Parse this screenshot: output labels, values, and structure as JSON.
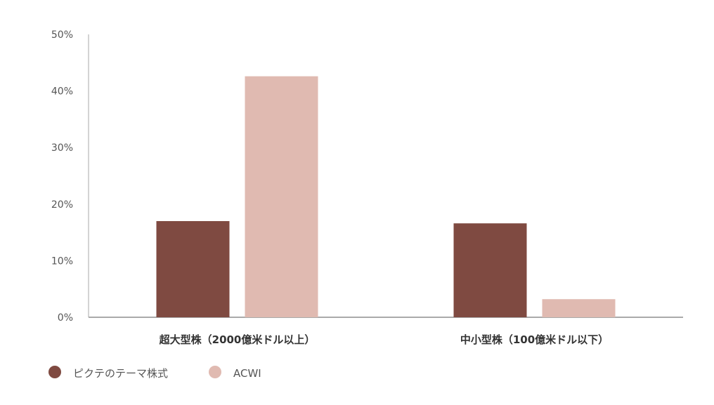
{
  "chart_data": {
    "type": "bar",
    "categories": [
      "超大型株（2000億米ドル以上）",
      "中小型株（100億米ドル以下）"
    ],
    "series": [
      {
        "name": "ピクテのテーマ株式",
        "values": [
          17.0,
          16.6
        ],
        "color": "#7F4A41"
      },
      {
        "name": "ACWI",
        "values": [
          42.6,
          3.2
        ],
        "color": "#E0BAB1"
      }
    ],
    "ylim": [
      0,
      50
    ],
    "yticks": [
      "0%",
      "10%",
      "20%",
      "30%",
      "40%",
      "50%"
    ],
    "grid": false,
    "legend": "bottom-left",
    "axis_color": "#aaaaaa"
  }
}
